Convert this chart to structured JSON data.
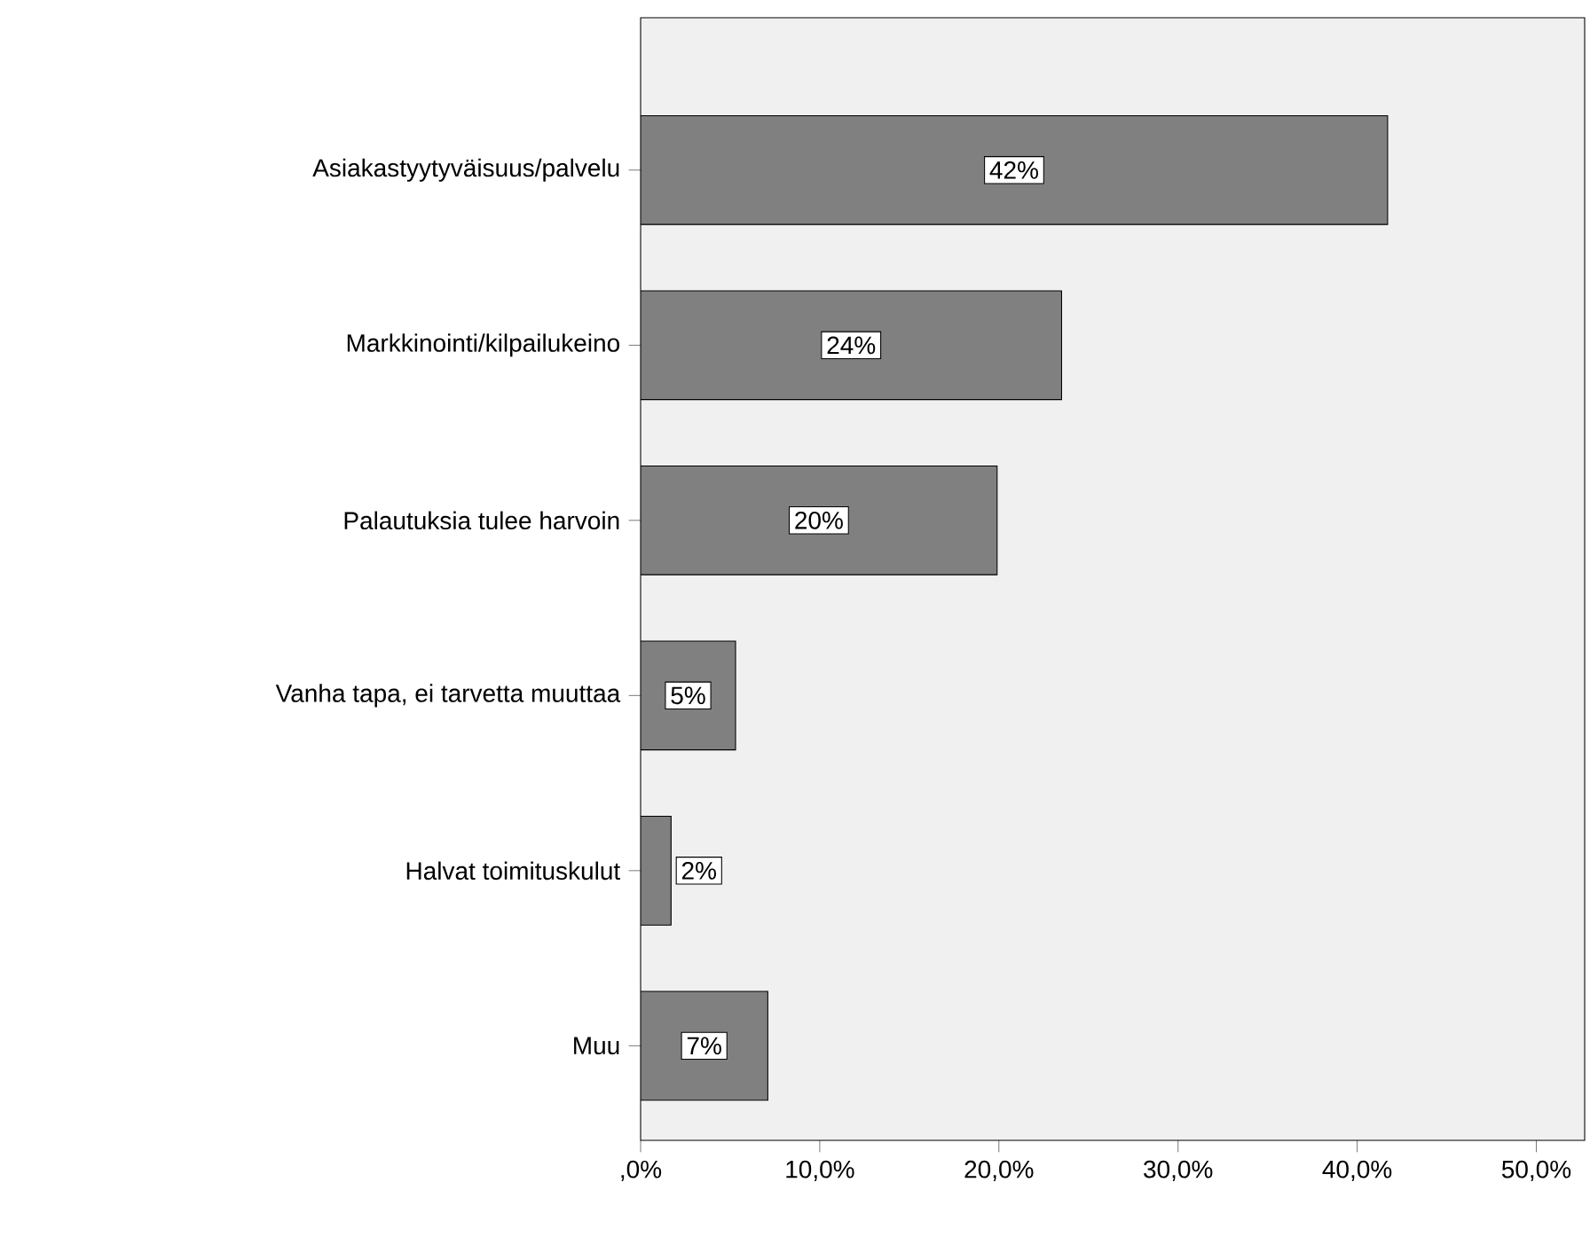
{
  "chart_data": {
    "type": "bar",
    "orientation": "horizontal",
    "categories": [
      "Asiakastyytyväisuus/palvelu",
      "Markkinointi/kilpailukeino",
      "Palautuksia tulee harvoin",
      "Vanha tapa, ei tarvetta muuttaa",
      "Halvat toimituskulut",
      "Muu"
    ],
    "values": [
      41.7,
      23.5,
      19.9,
      5.3,
      1.7,
      7.1
    ],
    "value_labels": [
      "42%",
      "24%",
      "20%",
      "5%",
      "2%",
      "7%"
    ],
    "color": "#808080",
    "xlim": [
      0,
      52.7
    ],
    "xticks": [
      {
        "value": 0,
        "label": ",0%"
      },
      {
        "value": 10,
        "label": "10,0%"
      },
      {
        "value": 20,
        "label": "20,0%"
      },
      {
        "value": 30,
        "label": "30,0%"
      },
      {
        "value": 40,
        "label": "40,0%"
      },
      {
        "value": 50,
        "label": "50,0%"
      }
    ]
  }
}
